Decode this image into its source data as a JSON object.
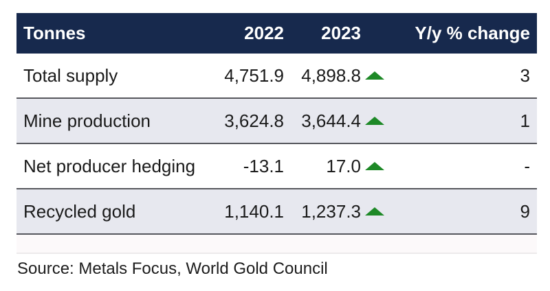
{
  "chart_data": {
    "type": "table",
    "title": "",
    "columns": [
      "Tonnes",
      "2022",
      "2023",
      "Y/y % change"
    ],
    "rows": [
      {
        "label": "Total supply",
        "y2022": "4,751.9",
        "y2023": "4,898.8",
        "trend": "up",
        "yoy_change": "3"
      },
      {
        "label": "Mine production",
        "y2022": "3,624.8",
        "y2023": "3,644.4",
        "trend": "up",
        "yoy_change": "1"
      },
      {
        "label": "Net producer hedging",
        "y2022": "-13.1",
        "y2023": "17.0",
        "trend": "up",
        "yoy_change": "-"
      },
      {
        "label": "Recycled gold",
        "y2022": "1,140.1",
        "y2023": "1,237.3",
        "trend": "up",
        "yoy_change": "9"
      }
    ],
    "source": "Source: Metals Focus, World Gold Council",
    "layout": {
      "legend": "none",
      "grid": "row-borders",
      "alternating_rows": true
    }
  },
  "colors": {
    "header_bg": "#17294d",
    "header_text": "#ffffff",
    "alt_row_bg": "#e7e8ef",
    "row_border": "#55565c",
    "trend_up": "#1e8927",
    "body_text": "#1a1a1a"
  }
}
